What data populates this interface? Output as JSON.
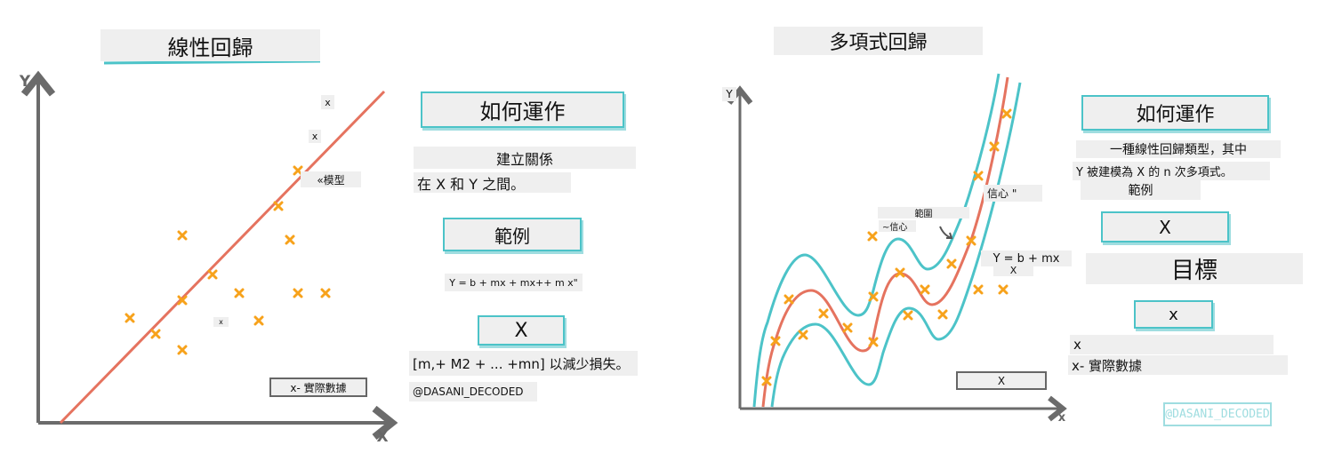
{
  "colors": {
    "axis": "#6b6b6b",
    "fit_line": "#e5735f",
    "confidence_band": "#4cc3c8",
    "data_point": "#f7a21b",
    "box_border": "#4cc3c8"
  },
  "linear": {
    "title": "線性回歸",
    "y_axis": "Y",
    "x_axis": "X",
    "labels": {
      "x1": "x",
      "x2": "x",
      "model": "«模型",
      "x3": "x",
      "legend": "x- 實際數據"
    },
    "how": {
      "heading": "如何運作",
      "line1": "建立關係",
      "line2": "在 X 和 Y 之間。"
    },
    "example": {
      "heading": "範例",
      "formula": "Y = b + mx + mx++ m x\"",
      "box": "X",
      "note": "[m,+ M2 + ... +mn] 以減少損失。"
    },
    "credit": "@DASANI_DECODED"
  },
  "polynomial": {
    "title": "多項式回歸",
    "y_axis": "Y",
    "x_axis": "x",
    "labels": {
      "range": "範圍",
      "confidence_small": "~信心",
      "confidence": "信心 \"",
      "formula": "Y = b + mx",
      "formula_x": "X",
      "box": "X"
    },
    "how": {
      "heading": "如何運作",
      "line1": "一種線性回歸類型，其中",
      "line2": "Y 被建模為 X 的 n 次多項式。",
      "line3": "範例"
    },
    "example_box": "X",
    "goal": {
      "heading": "目標",
      "box": "x",
      "line1": "x",
      "line2": "x- 實際數據"
    },
    "credit": "@DASANI_DECODED"
  }
}
